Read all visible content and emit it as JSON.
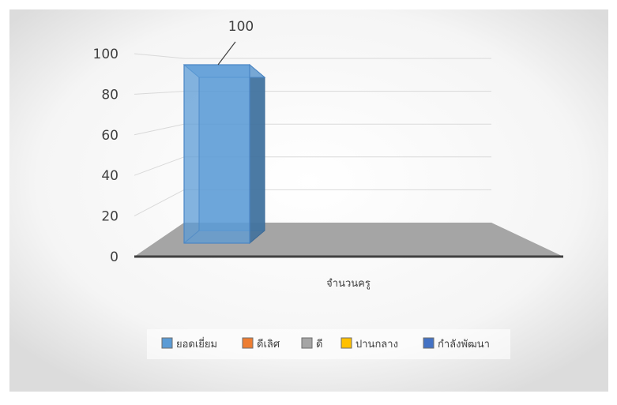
{
  "chart_data": {
    "type": "bar",
    "categories": [
      "จำนวนครู"
    ],
    "series": [
      {
        "name": "ยอดเยี่ยม",
        "values": [
          100
        ],
        "color": "#5b9bd5"
      },
      {
        "name": "ดีเลิศ",
        "values": [
          0
        ],
        "color": "#ed7d31"
      },
      {
        "name": "ดี",
        "values": [
          0
        ],
        "color": "#a5a5a5"
      },
      {
        "name": "ปานกลาง",
        "values": [
          0
        ],
        "color": "#ffc000"
      },
      {
        "name": "กำลังพัฒนา",
        "values": [
          0
        ],
        "color": "#4472c4"
      }
    ],
    "y_ticks": [
      "0",
      "20",
      "40",
      "60",
      "80",
      "100"
    ],
    "ylim": [
      0,
      100
    ],
    "data_labels": [
      "100"
    ],
    "xlabel": "จำนวนครู",
    "ylabel": "",
    "title": "",
    "grid": true,
    "legend_position": "bottom",
    "three_d": true,
    "floor_color": "#a5a5a5"
  }
}
